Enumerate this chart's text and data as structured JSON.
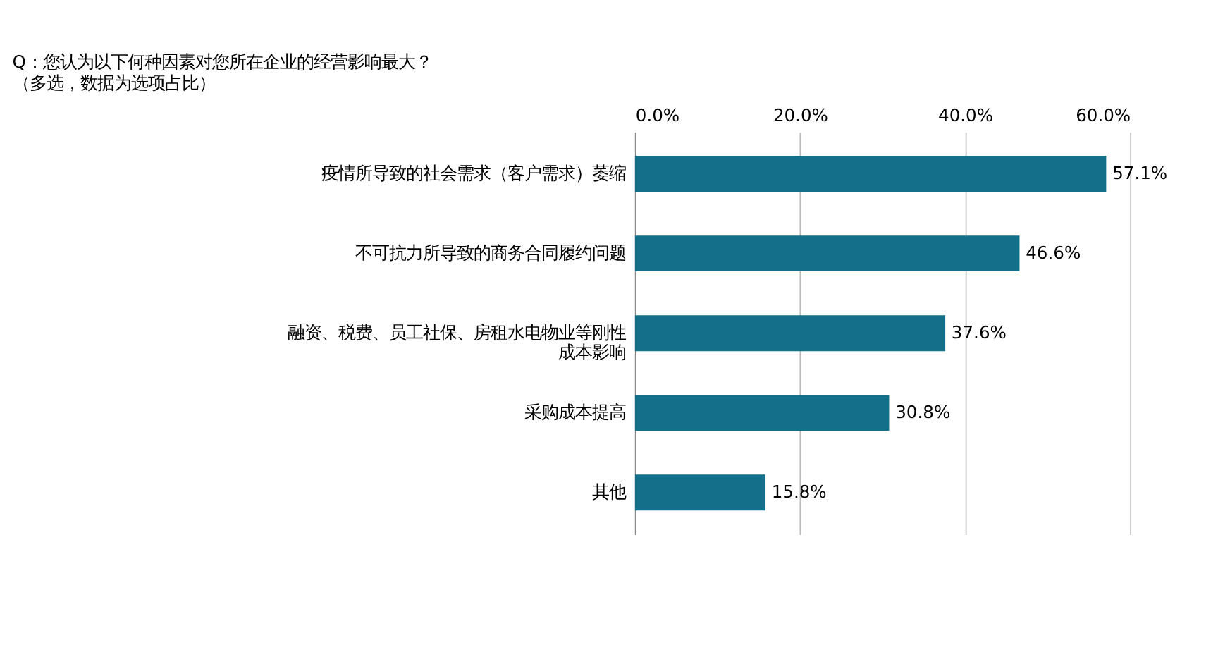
{
  "chart_data": {
    "type": "bar",
    "orientation": "horizontal",
    "title": "Q：您认为以下何种因素对您所在企业的经营影响最大？",
    "subtitle": "（多选，数据为选项占比）",
    "categories": [
      "疫情所导致的社会需求（客户需求）萎缩",
      "不可抗力所导致的商务合同履约问题",
      "融资、税费、员工社保、房租水电物业等刚性成本影响",
      "采购成本提高",
      "其他"
    ],
    "values": [
      57.1,
      46.6,
      37.6,
      30.8,
      15.8
    ],
    "color": "#136f8a",
    "value_labels": [
      "57.1%",
      "46.6%",
      "37.6%",
      "30.8%",
      "15.8%"
    ],
    "xlim": [
      0,
      60
    ],
    "xticks": [
      {
        "value": 0,
        "label": "0.0%"
      },
      {
        "value": 20,
        "label": "20.0%"
      },
      {
        "value": 40,
        "label": "40.0%"
      },
      {
        "value": 60,
        "label": "60.0%"
      }
    ],
    "grid": "x"
  }
}
